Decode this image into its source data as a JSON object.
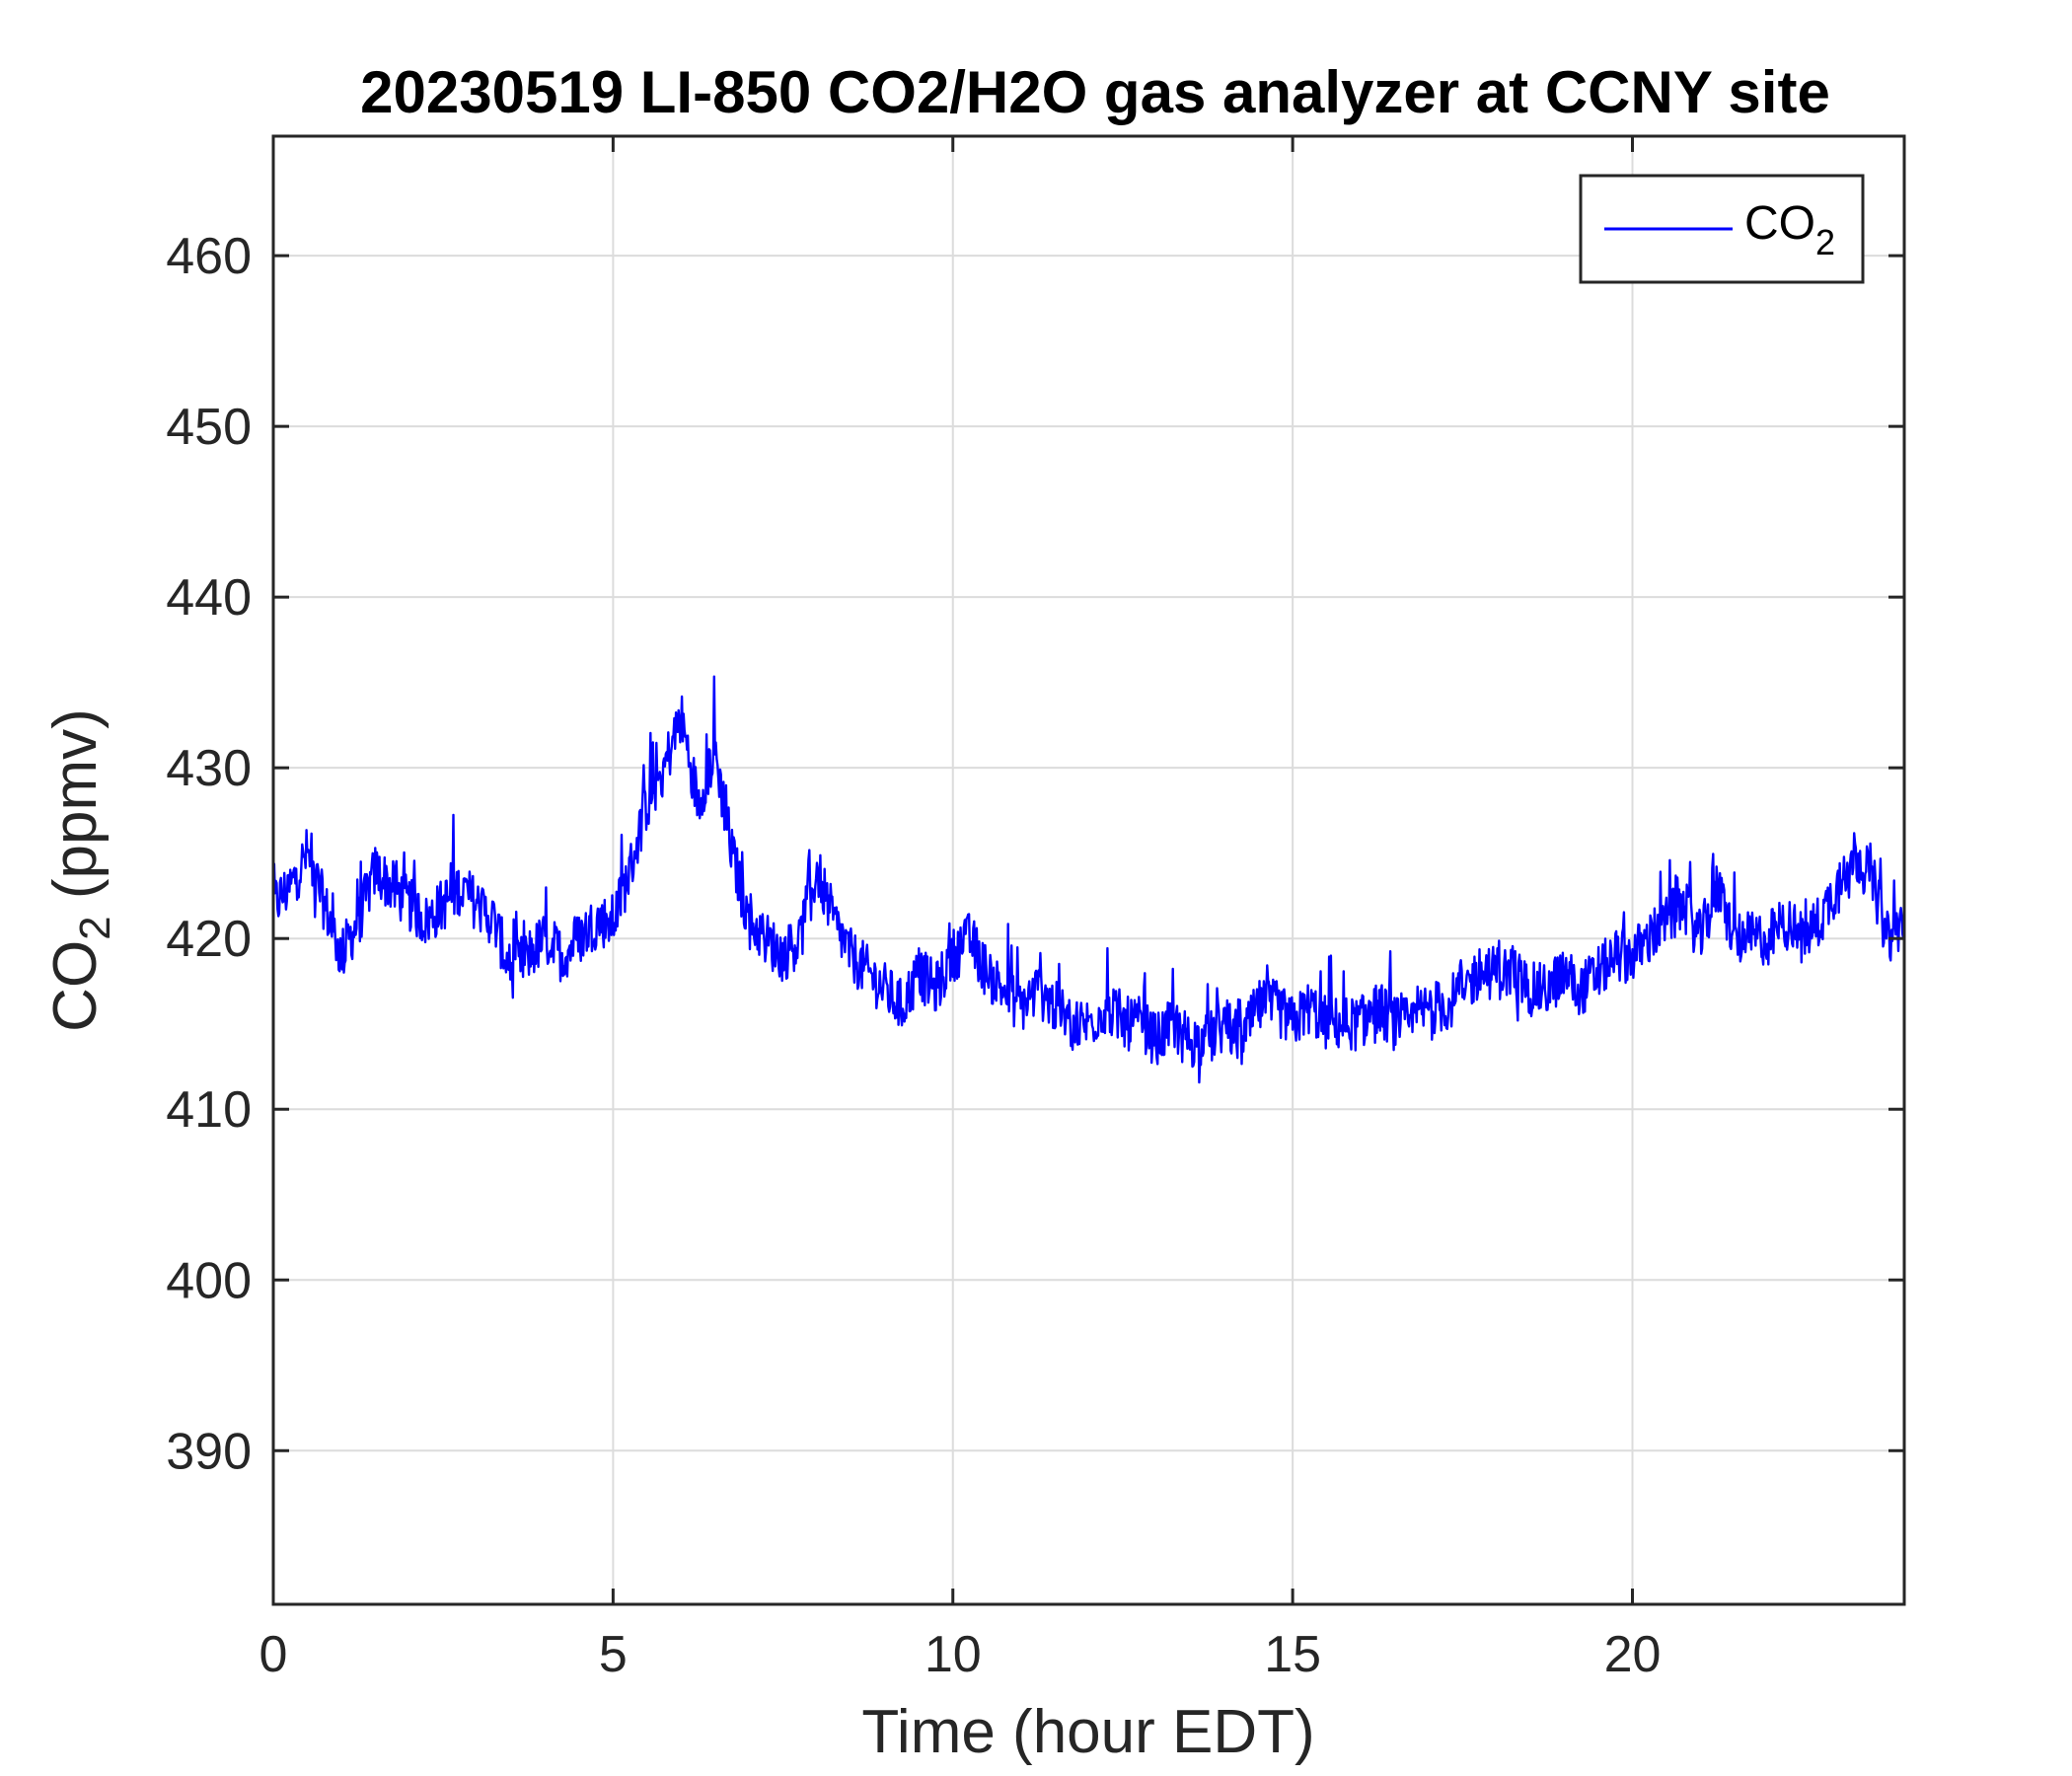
{
  "chart_data": {
    "type": "line",
    "title": "20230519 LI-850 CO2/H2O gas analyzer at CCNY site",
    "xlabel": "Time (hour EDT)",
    "ylabel_main": "CO",
    "ylabel_sub": "2",
    "ylabel_tail": " (ppmv)",
    "xlim": [
      0,
      24
    ],
    "ylim": [
      381,
      467
    ],
    "xticks": [
      0,
      5,
      10,
      15,
      20
    ],
    "xtick_labels": [
      "0",
      "5",
      "10",
      "15",
      "20"
    ],
    "yticks": [
      390,
      400,
      410,
      420,
      430,
      440,
      450,
      460
    ],
    "ytick_labels": [
      "390",
      "400",
      "410",
      "420",
      "430",
      "440",
      "450",
      "460"
    ],
    "grid": true,
    "legend_position": "top-right",
    "colors": {
      "series": "#0000ff",
      "grid": "#dcdcdc",
      "axes": "#262626"
    },
    "series": [
      {
        "name_main": "CO",
        "name_sub": "2",
        "x": [
          0,
          0.25,
          0.5,
          0.75,
          1,
          1.25,
          1.5,
          1.75,
          2,
          2.25,
          2.5,
          2.75,
          3,
          3.25,
          3.5,
          3.75,
          4,
          4.25,
          4.5,
          4.75,
          5,
          5.25,
          5.5,
          5.75,
          6,
          6.25,
          6.5,
          6.75,
          7,
          7.25,
          7.5,
          7.75,
          8,
          8.25,
          8.5,
          8.75,
          9,
          9.25,
          9.5,
          9.75,
          10,
          10.25,
          10.5,
          10.75,
          11,
          11.25,
          11.5,
          11.75,
          12,
          12.25,
          12.5,
          12.75,
          13,
          13.25,
          13.5,
          13.75,
          14,
          14.25,
          14.5,
          14.75,
          15,
          15.25,
          15.5,
          15.75,
          16,
          16.25,
          16.5,
          16.75,
          17,
          17.25,
          17.5,
          17.75,
          18,
          18.25,
          18.5,
          18.75,
          19,
          19.25,
          19.5,
          19.75,
          20,
          20.25,
          20.5,
          20.75,
          21,
          21.25,
          21.5,
          21.75,
          22,
          22.25,
          22.5,
          22.75,
          23,
          23.25,
          23.5,
          23.75,
          24
        ],
        "values": [
          422,
          423,
          425,
          422,
          419,
          421,
          424,
          423,
          422,
          421,
          422,
          423,
          422,
          421,
          418,
          419,
          420,
          419,
          420,
          421,
          421,
          424,
          428,
          430,
          433,
          428,
          431,
          425,
          421,
          420,
          419,
          420,
          424,
          421,
          419,
          418,
          417,
          416,
          418,
          417,
          419,
          420,
          418,
          417,
          416,
          417,
          416,
          415,
          415,
          416,
          415,
          415,
          414,
          415,
          414,
          414,
          415,
          414,
          416,
          416,
          415,
          416,
          415,
          415,
          415,
          416,
          415,
          415,
          416,
          416,
          417,
          418,
          418,
          418,
          417,
          417,
          418,
          417,
          418,
          419,
          419,
          420,
          421,
          422,
          420,
          423,
          420,
          420,
          420,
          421,
          420,
          421,
          423,
          425,
          424,
          420,
          421
        ]
      }
    ]
  }
}
